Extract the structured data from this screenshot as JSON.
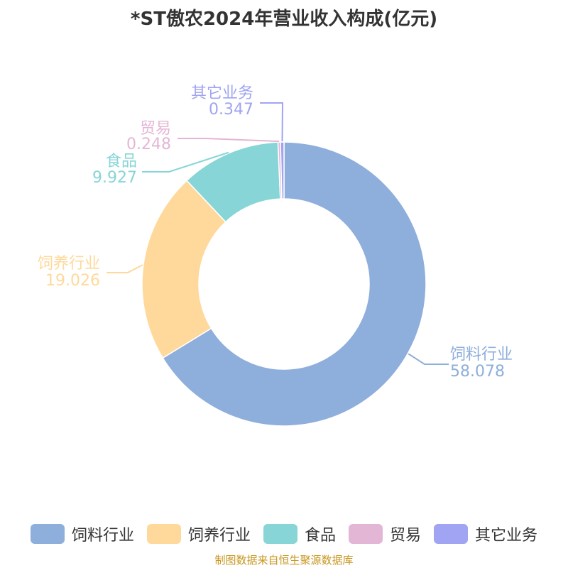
{
  "title": "*ST傲农2024年营业收入构成(亿元)",
  "source": "制图数据来自恒生聚源数据库",
  "chart_data": {
    "type": "pie",
    "donut": true,
    "title": "*ST傲农2024年营业收入构成(亿元)",
    "unit": "亿元",
    "slices": [
      {
        "name": "饲料行业",
        "value": 58.078,
        "label": "58.078",
        "color": "#8eaedb"
      },
      {
        "name": "饲养行业",
        "value": 19.026,
        "label": "19.026",
        "color": "#ffd99b"
      },
      {
        "name": "食品",
        "value": 9.927,
        "label": "9.927",
        "color": "#87d5d6"
      },
      {
        "name": "贸易",
        "value": 0.248,
        "label": "0.248",
        "color": "#e4b6d6"
      },
      {
        "name": "其它业务",
        "value": 0.347,
        "label": "0.347",
        "color": "#a0a4f2"
      }
    ],
    "legend_position": "bottom"
  }
}
